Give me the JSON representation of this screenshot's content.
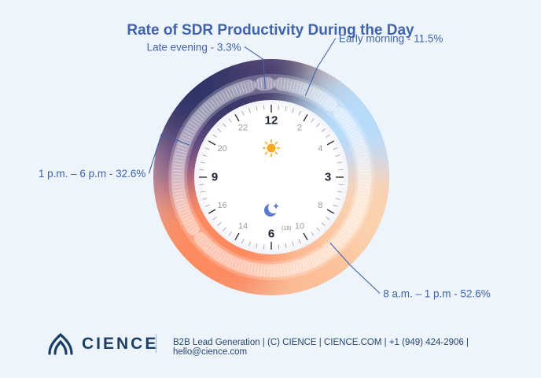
{
  "chart_data": {
    "type": "pie",
    "title": "Rate of SDR Productivity During the Day",
    "slices": [
      {
        "label": "Early morning - 11.5%",
        "value": 11.5
      },
      {
        "label": "8 a.m. – 1 p.m - 52.6%",
        "value": 52.6
      },
      {
        "label": "1 p.m. – 6 p.m - 32.6%",
        "value": 32.6
      },
      {
        "label": "Late evening - 3.3%",
        "value": 3.3
      }
    ]
  },
  "clock": {
    "numbers": [
      {
        "text": "12",
        "hour": 0,
        "major": true
      },
      {
        "text": "2",
        "hour": 1,
        "major": false
      },
      {
        "text": "4",
        "hour": 2,
        "major": false
      },
      {
        "text": "3",
        "hour": 3,
        "major": true
      },
      {
        "text": "8",
        "hour": 4,
        "major": false
      },
      {
        "text": "10",
        "hour": 5,
        "major": false
      },
      {
        "text": "6",
        "hour": 6,
        "major": true
      },
      {
        "text": "14",
        "hour": 7,
        "major": false
      },
      {
        "text": "16",
        "hour": 8,
        "major": false
      },
      {
        "text": "9",
        "hour": 9,
        "major": true
      },
      {
        "text": "20",
        "hour": 10,
        "major": false
      },
      {
        "text": "22",
        "hour": 11,
        "major": false
      }
    ],
    "small_label": "(18)",
    "colors": {
      "dark": "#2f3566",
      "purple": "#6a4f88",
      "light_blue": "#b6dbfb",
      "peach": "#fbd2ae",
      "orange": "#fd8a5f"
    },
    "icons": [
      "sun-icon",
      "moon-icon"
    ]
  },
  "footer": {
    "brand": "CIENCE",
    "info": "B2B Lead Generation | (C) CIENCE | CIENCE.COM | +1 (949) 424-2906 | hello@cience.com"
  }
}
